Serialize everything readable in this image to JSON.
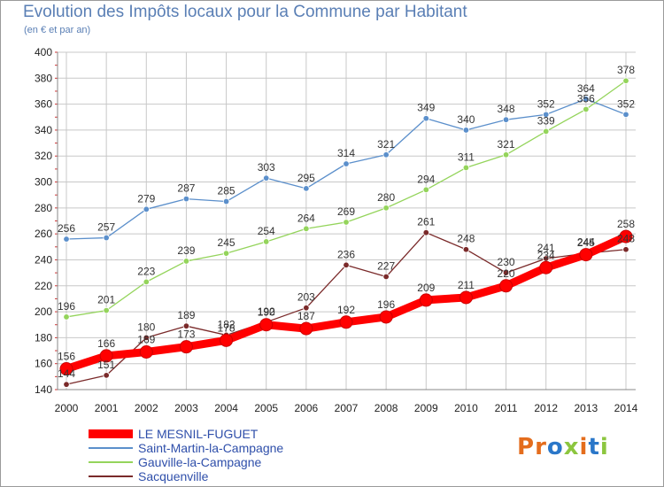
{
  "title": "Evolution des Impôts locaux pour la Commune par Habitant",
  "subtitle": "(en € et par an)",
  "logo_text": "Proxiti",
  "colors": {
    "title": "#5a7fb5",
    "grid": "#c8c8c8",
    "axis_ticks": "#cc3333",
    "logo": [
      "#e46d1d",
      "#e46d1d",
      "#2a77c9",
      "#8cc63f",
      "#e46d1d",
      "#2a77c9",
      "#8cc63f"
    ]
  },
  "chart_data": {
    "type": "line",
    "title": "Evolution des Impôts locaux pour la Commune par Habitant",
    "subtitle": "(en € et par an)",
    "xlabel": "",
    "ylabel": "",
    "x": [
      2000,
      2001,
      2002,
      2003,
      2004,
      2005,
      2006,
      2007,
      2008,
      2009,
      2010,
      2011,
      2012,
      2013,
      2014
    ],
    "ylim": [
      140,
      400
    ],
    "yticks": [
      140,
      160,
      180,
      200,
      220,
      240,
      260,
      280,
      300,
      320,
      340,
      360,
      380,
      400
    ],
    "grid": true,
    "legend_position": "bottom-left",
    "series": [
      {
        "name": "LE MESNIL-FUGUET",
        "color": "#ff0000",
        "emphasis": true,
        "values": [
          156,
          166,
          169,
          173,
          178,
          190,
          187,
          192,
          196,
          209,
          211,
          220,
          234,
          244,
          258
        ]
      },
      {
        "name": "Saint-Martin-la-Campagne",
        "color": "#5b8fcb",
        "emphasis": false,
        "values": [
          256,
          257,
          279,
          287,
          285,
          303,
          295,
          314,
          321,
          349,
          340,
          348,
          352,
          364,
          352
        ]
      },
      {
        "name": "Gauville-la-Campagne",
        "color": "#94d45b",
        "emphasis": false,
        "values": [
          196,
          201,
          223,
          239,
          245,
          254,
          264,
          269,
          280,
          294,
          311,
          321,
          339,
          356,
          378
        ]
      },
      {
        "name": "Sacquenville",
        "color": "#7a2a2a",
        "emphasis": false,
        "values": [
          144,
          151,
          180,
          189,
          182,
          192,
          203,
          236,
          227,
          261,
          248,
          230,
          241,
          245,
          248
        ]
      }
    ]
  }
}
